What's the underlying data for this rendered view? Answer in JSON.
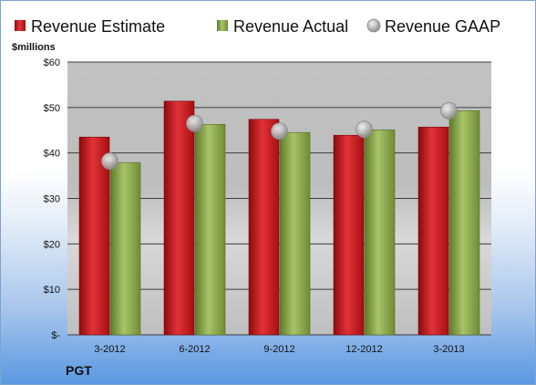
{
  "chart_data": {
    "type": "bar",
    "ticker": "PGT",
    "unit_label": "$millions",
    "categories": [
      "3-2012",
      "6-2012",
      "9-2012",
      "12-2012",
      "3-2013"
    ],
    "series": [
      {
        "name": "Revenue Estimate",
        "kind": "bar",
        "color": "#d0181c",
        "values": [
          43.5,
          51.4,
          47.4,
          43.9,
          45.7
        ]
      },
      {
        "name": "Revenue Actual",
        "kind": "bar",
        "color": "#8fae4c",
        "values": [
          37.9,
          46.3,
          44.5,
          45.1,
          49.3
        ]
      },
      {
        "name": "Revenue GAAP",
        "kind": "marker",
        "color": "#b9b9b9",
        "values": [
          38.2,
          46.5,
          44.8,
          45.2,
          49.3
        ]
      }
    ],
    "ylim": [
      0,
      60
    ],
    "yticks": [
      0,
      10,
      20,
      30,
      40,
      50,
      60
    ],
    "ytick_labels": [
      "$-",
      "$10",
      "$20",
      "$30",
      "$40",
      "$50",
      "$60"
    ],
    "grid": true,
    "legend_position": "top"
  }
}
